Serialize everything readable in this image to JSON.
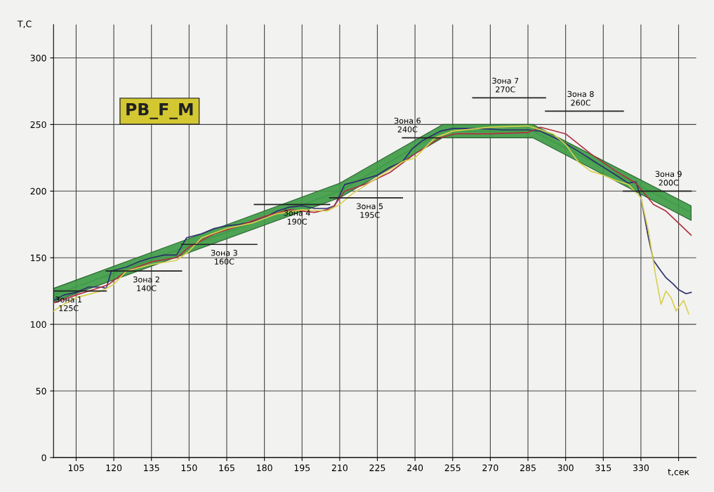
{
  "chart_data": {
    "type": "line",
    "xlabel": "t,сек",
    "ylabel": "T,C",
    "xlim": [
      96,
      352
    ],
    "ylim": [
      0,
      325
    ],
    "xticks": [
      105,
      120,
      135,
      150,
      165,
      180,
      195,
      210,
      225,
      240,
      255,
      270,
      285,
      300,
      315,
      330,
      {
        "value": 345,
        "label": null
      }
    ],
    "yticks": [
      0,
      50,
      100,
      150,
      200,
      250,
      300
    ],
    "grid": true,
    "legend": false,
    "marker": "none",
    "line_style": "solid",
    "series": [
      {
        "type": "line",
        "color": "#3c9a44",
        "x": [
          96,
          210,
          251,
          287,
          350
        ],
        "values": [
          122,
          200,
          245,
          245,
          184
        ],
        "lower": [
          117,
          195,
          240,
          240,
          178
        ],
        "upper": [
          127,
          206,
          250,
          250,
          189
        ]
      },
      {
        "color": "#2b2f6e",
        "x": [
          96,
          100,
          105,
          110,
          115,
          117,
          119,
          125,
          130,
          135,
          140,
          145,
          149,
          155,
          160,
          165,
          170,
          175,
          180,
          185,
          190,
          195,
          200,
          205,
          208,
          212,
          218,
          225,
          230,
          235,
          239,
          243,
          250,
          255,
          265,
          275,
          285,
          290,
          298,
          305,
          310,
          315,
          320,
          325,
          328,
          330,
          333,
          335,
          338,
          340,
          343,
          345,
          348,
          350
        ],
        "values": [
          118,
          122,
          124,
          128,
          128,
          127,
          140,
          143,
          147,
          150,
          152,
          152,
          165,
          168,
          172,
          174,
          175,
          177,
          180,
          185,
          188,
          189,
          187,
          187,
          189,
          205,
          208,
          212,
          218,
          222,
          232,
          238,
          245,
          247,
          247,
          246,
          246,
          245,
          238,
          230,
          224,
          218,
          212,
          206,
          207,
          195,
          165,
          148,
          140,
          135,
          130,
          126,
          123,
          124
        ]
      },
      {
        "color": "#b03040",
        "x": [
          96,
          105,
          115,
          118,
          125,
          135,
          145,
          150,
          160,
          170,
          180,
          190,
          200,
          207,
          212,
          220,
          230,
          240,
          250,
          256,
          270,
          285,
          290,
          300,
          310,
          320,
          328,
          335,
          340,
          345,
          350
        ],
        "values": [
          116,
          122,
          128,
          130,
          140,
          147,
          150,
          158,
          168,
          174,
          181,
          186,
          184,
          187,
          200,
          205,
          214,
          228,
          240,
          243,
          243,
          244,
          248,
          243,
          228,
          215,
          206,
          190,
          185,
          176,
          167
        ]
      },
      {
        "color": "#d8d050",
        "x": [
          96,
          100,
          105,
          115,
          120,
          125,
          135,
          145,
          150,
          155,
          165,
          175,
          185,
          195,
          205,
          210,
          215,
          225,
          235,
          240,
          248,
          255,
          270,
          285,
          290,
          295,
          300,
          305,
          310,
          315,
          320,
          325,
          330,
          333,
          336,
          338,
          340,
          342,
          344,
          347,
          349
        ],
        "values": [
          110,
          115,
          120,
          125,
          130,
          140,
          145,
          148,
          155,
          165,
          172,
          176,
          183,
          186,
          185,
          190,
          198,
          210,
          222,
          225,
          240,
          245,
          248,
          249,
          246,
          243,
          235,
          222,
          215,
          212,
          208,
          205,
          195,
          170,
          135,
          115,
          125,
          120,
          110,
          118,
          108
        ]
      },
      {
        "color": "#222222",
        "x": [
          96,
          117
        ],
        "values": [
          125,
          125
        ]
      },
      {
        "color": "#222222",
        "x": [
          117,
          147
        ],
        "values": [
          140,
          140
        ]
      },
      {
        "color": "#222222",
        "x": [
          147,
          177
        ],
        "values": [
          160,
          160
        ]
      },
      {
        "color": "#222222",
        "x": [
          176,
          206
        ],
        "values": [
          190,
          190
        ]
      },
      {
        "color": "#222222",
        "x": [
          206,
          235
        ],
        "values": [
          195,
          195
        ]
      },
      {
        "color": "#222222",
        "x": [
          235,
          250
        ],
        "values": [
          240,
          240
        ]
      },
      {
        "color": "#222222",
        "x": [
          263,
          292
        ],
        "values": [
          270,
          270
        ]
      },
      {
        "color": "#222222",
        "x": [
          292,
          323
        ],
        "values": [
          260,
          260
        ]
      },
      {
        "color": "#222222",
        "x": [
          323,
          350
        ],
        "values": [
          200,
          200
        ]
      }
    ],
    "annotations": [
      {
        "text": "Зона 1\n125С",
        "x": 102,
        "y": 125
      },
      {
        "text": "Зона 2\n140С",
        "x": 133,
        "y": 140
      },
      {
        "text": "Зона 3\n160С",
        "x": 164,
        "y": 160
      },
      {
        "text": "Зона 4\n190С",
        "x": 193,
        "y": 190
      },
      {
        "text": "Зона 5\n195С",
        "x": 222,
        "y": 195
      },
      {
        "text": "Зона 6\n240С",
        "x": 237,
        "y": 240
      },
      {
        "text": "Зона 7\n270С",
        "x": 276,
        "y": 270
      },
      {
        "text": "Зона 8\n260С",
        "x": 306,
        "y": 260
      },
      {
        "text": "Зона 9\n200С",
        "x": 341,
        "y": 200
      },
      "PB_F_M"
    ]
  }
}
